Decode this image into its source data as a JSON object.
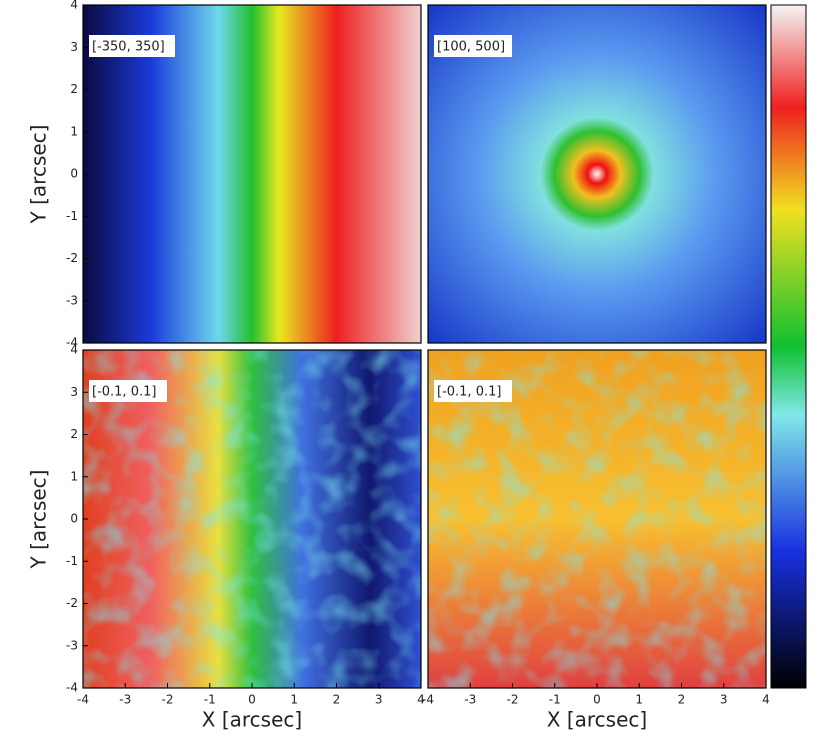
{
  "chart_data": [
    {
      "type": "image",
      "annotation": "[-350, 350]",
      "ylabel": "Y [arcsec]",
      "xlim": [
        -4,
        4
      ],
      "ylim": [
        -4,
        4
      ],
      "yticks": [
        -4,
        -3,
        -2,
        -1,
        0,
        1,
        2,
        3,
        4
      ]
    },
    {
      "type": "image",
      "annotation": "[100, 500]",
      "xlim": [
        -4,
        4
      ],
      "ylim": [
        -4,
        4
      ]
    },
    {
      "type": "image",
      "annotation": "[-0.1, 0.1]",
      "xlabel": "X [arcsec]",
      "ylabel": "Y [arcsec]",
      "xlim": [
        -4,
        4
      ],
      "ylim": [
        -4,
        4
      ],
      "xticks": [
        -4,
        -3,
        -2,
        -1,
        0,
        1,
        2,
        3,
        4
      ],
      "yticks": [
        -4,
        -3,
        -2,
        -1,
        0,
        1,
        2,
        3,
        4
      ]
    },
    {
      "type": "image",
      "annotation": "[-0.1, 0.1]",
      "xlabel": "X [arcsec]",
      "xlim": [
        -4,
        4
      ],
      "ylim": [
        -4,
        4
      ],
      "xticks": [
        -4,
        -3,
        -2,
        -1,
        0,
        1,
        2,
        3,
        4
      ]
    }
  ]
}
